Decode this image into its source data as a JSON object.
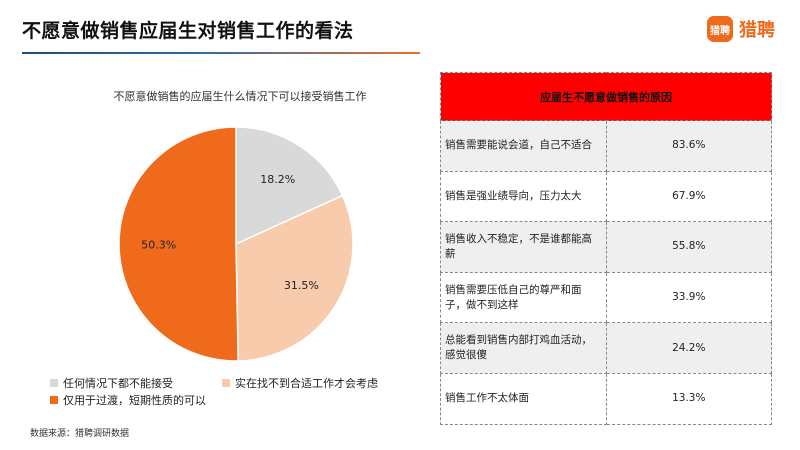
{
  "header": {
    "title": "不愿意做销售应届生对销售工作的看法",
    "logo_badge": "猎聘",
    "logo_text": "猎聘"
  },
  "chart_data": {
    "type": "pie",
    "title": "不愿意做销售的应届生什么情况下可以接受销售工作",
    "slices": [
      {
        "name": "任何情况下都不能接受",
        "value": 18.2,
        "label": "18.2%",
        "color": "#d9d9d9"
      },
      {
        "name": "实在找不到合适工作才会考虑",
        "value": 31.5,
        "label": "31.5%",
        "color": "#f8cbad"
      },
      {
        "name": "仅用于过渡，短期性质的可以",
        "value": 50.3,
        "label": "50.3%",
        "color": "#f06a1c"
      }
    ],
    "legend_position": "bottom"
  },
  "table": {
    "header": "应届生不愿意做销售的原因",
    "rows": [
      {
        "reason": "销售需要能说会道，自己不适合",
        "value": "83.6%"
      },
      {
        "reason": "销售是强业绩导向，压力太大",
        "value": "67.9%"
      },
      {
        "reason": "销售收入不稳定，不是谁都能高薪",
        "value": "55.8%"
      },
      {
        "reason": "销售需要压低自己的尊严和面子，做不到这样",
        "value": "33.9%"
      },
      {
        "reason": "总能看到销售内部打鸡血活动，感觉很傻",
        "value": "24.2%"
      },
      {
        "reason": "销售工作不太体面",
        "value": "13.3%"
      }
    ]
  },
  "footer": {
    "source": "数据来源：猎聘调研数据"
  }
}
